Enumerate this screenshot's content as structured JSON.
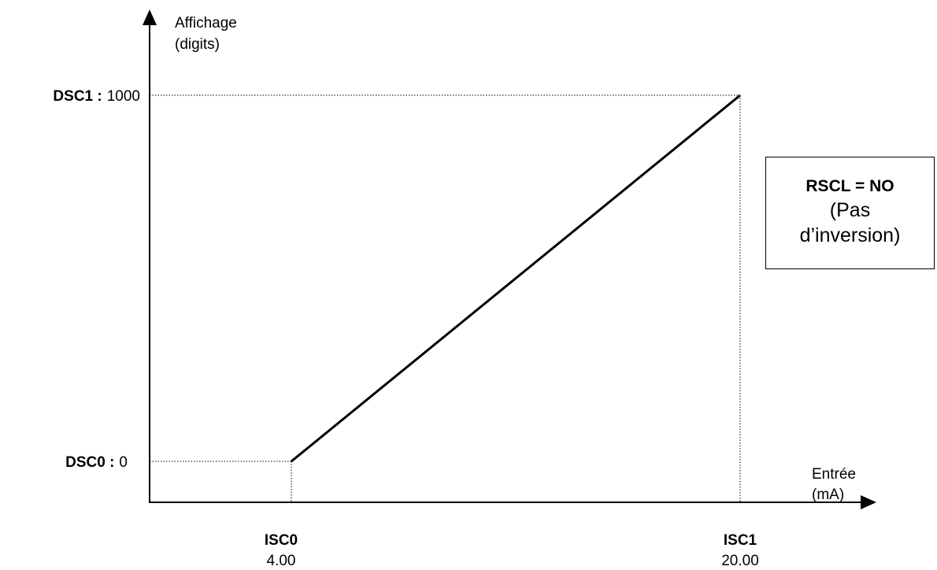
{
  "diagram": {
    "y_axis": {
      "label_line1": "Affichage",
      "label_line2": "(digits)"
    },
    "x_axis": {
      "label_line1": "Entrée",
      "label_line2": "(mA)"
    },
    "points": {
      "dsc1": {
        "name": "DSC1 :",
        "value": "1000"
      },
      "dsc0": {
        "name": "DSC0 :",
        "value": "0"
      },
      "isc0": {
        "name": "ISC0",
        "value": "4.00"
      },
      "isc1": {
        "name": "ISC1",
        "value": "20.00"
      }
    },
    "mode_box": {
      "title": "RSCL = NO",
      "note_line1": "(Pas",
      "note_line2": "d’inversion)"
    },
    "line_color": "#000000"
  },
  "chart_data": {
    "type": "line",
    "x": [
      4.0,
      20.0
    ],
    "y": [
      0,
      1000
    ],
    "xlabel": "Entrée (mA)",
    "ylabel": "Affichage (digits)"
  }
}
